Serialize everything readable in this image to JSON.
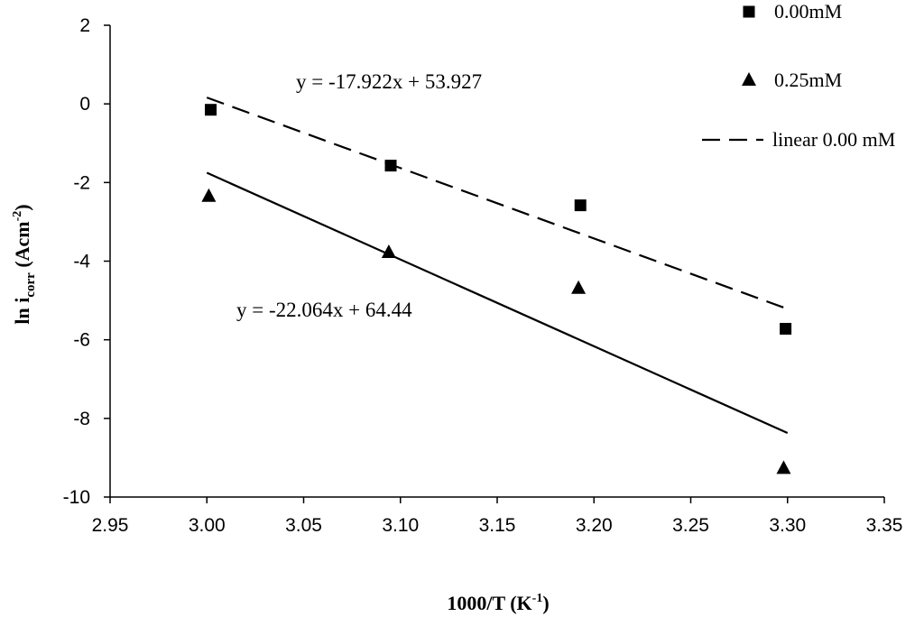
{
  "chart_data": {
    "type": "scatter",
    "xlabel": "1000/T (K-1)",
    "xlabel_main": "1000/T (K",
    "xlabel_sup": "-1",
    "xlabel_end": ")",
    "ylabel_main": "ln i",
    "ylabel_sub": "corr",
    "ylabel_unit": " (Acm",
    "ylabel_sup": "-2",
    "ylabel_end": ")",
    "xlim": [
      2.95,
      3.35
    ],
    "ylim": [
      -10,
      2
    ],
    "xticks": [
      "2.95",
      "3.00",
      "3.05",
      "3.10",
      "3.15",
      "3.20",
      "3.25",
      "3.30",
      "3.35"
    ],
    "xtick_values": [
      2.95,
      3.0,
      3.05,
      3.1,
      3.15,
      3.2,
      3.25,
      3.3,
      3.35
    ],
    "yticks": [
      "2",
      "0",
      "-2",
      "-4",
      "-6",
      "-8",
      "-10"
    ],
    "ytick_values": [
      2,
      0,
      -2,
      -4,
      -6,
      -8,
      -10
    ],
    "grid": false,
    "legend_position": "top-right",
    "series": [
      {
        "name": "0.00mM",
        "marker": "square",
        "color": "#000000",
        "points": [
          [
            3.002,
            -0.15
          ],
          [
            3.095,
            -1.57
          ],
          [
            3.193,
            -2.58
          ],
          [
            3.299,
            -5.72
          ]
        ]
      },
      {
        "name": "0.25mM",
        "marker": "triangle",
        "color": "#000000",
        "points": [
          [
            3.001,
            -2.33
          ],
          [
            3.094,
            -3.76
          ],
          [
            3.192,
            -4.67
          ],
          [
            3.298,
            -9.25
          ]
        ]
      }
    ],
    "trendlines": [
      {
        "name": "linear 0.00 mM",
        "style": "dashed",
        "slope": -17.922,
        "intercept": 53.927,
        "x_range": [
          3.0,
          3.3
        ],
        "equation": "y = -17.922x + 53.927"
      },
      {
        "name": "",
        "style": "solid",
        "slope": -22.064,
        "intercept": 64.44,
        "x_range": [
          3.0,
          3.3
        ],
        "equation": "y = -22.064x + 64.44"
      }
    ],
    "legend": [
      {
        "label": "0.00mM",
        "symbol": "square"
      },
      {
        "label": "0.25mM",
        "symbol": "triangle"
      },
      {
        "label": "linear 0.00 mM",
        "symbol": "dashed-line"
      }
    ]
  }
}
